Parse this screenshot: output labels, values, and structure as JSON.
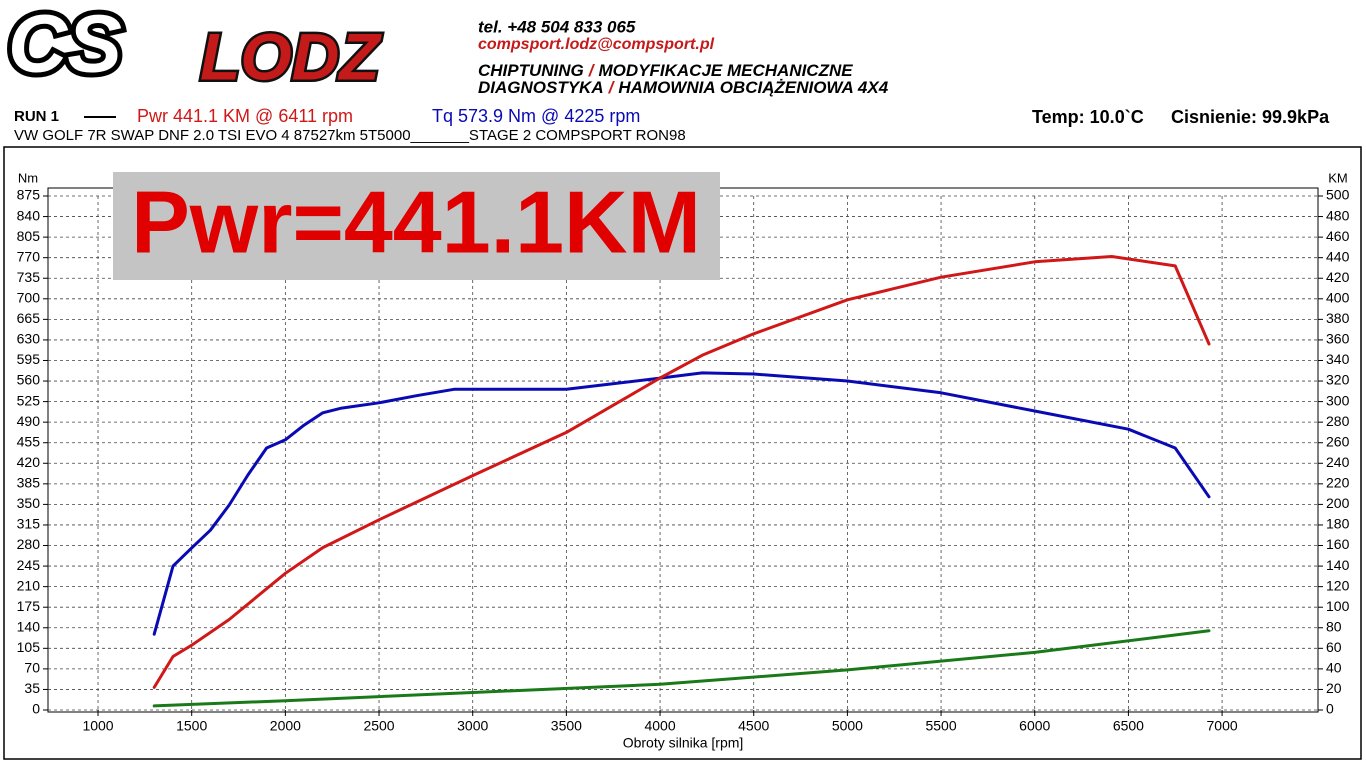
{
  "header": {
    "logo": [
      "CS",
      "LODZ"
    ],
    "phone": "tel. +48 504 833 065",
    "email": "compsport.lodz@compsport.pl",
    "services": [
      [
        "CHIPTUNING",
        "/",
        "MODYFIKACJE MECHANICZNE"
      ],
      [
        "DIAGNOSTYKA",
        "/",
        "HAMOWNIA OBCIĄŻENIOWA 4X4"
      ]
    ]
  },
  "run": {
    "name": "RUN 1",
    "pwr": "Pwr  441.1 KM @ 6411 rpm",
    "tq": "Tq 573.9 Nm @ 4225 rpm",
    "temp": "Temp: 10.0`C",
    "pressure": "Cisnienie: 99.9kPa",
    "vehicle": "VW GOLF 7R SWAP DNF 2.0 TSI  EVO 4  87527km 5T5000_______STAGE 2 COMPSPORT RON98"
  },
  "chart_data": {
    "type": "line",
    "annotation": "Pwr=441.1KM",
    "y_label": "Nm",
    "y2_label": "KM",
    "x_label": "Obroty silnika [rpm]",
    "xlim": [
      733,
      7512
    ],
    "xticks": [
      1000,
      1500,
      2000,
      2500,
      3000,
      3500,
      4000,
      4500,
      5000,
      5500,
      6000,
      6500,
      7000
    ],
    "ylim": [
      0,
      875
    ],
    "yticks": [
      0,
      35,
      70,
      105,
      140,
      175,
      210,
      245,
      280,
      315,
      350,
      385,
      420,
      455,
      490,
      525,
      560,
      595,
      630,
      665,
      700,
      735,
      770,
      805,
      840,
      875
    ],
    "y2lim": [
      0,
      500
    ],
    "y2ticks": [
      0,
      20,
      40,
      60,
      80,
      100,
      120,
      140,
      160,
      180,
      200,
      220,
      240,
      260,
      280,
      300,
      320,
      340,
      360,
      380,
      400,
      420,
      440,
      460,
      480,
      500
    ],
    "grid": true,
    "series": [
      {
        "color": "#0a0ab4",
        "x": [
          1300,
          1350,
          1400,
          1500,
          1600,
          1700,
          1800,
          1900,
          2000,
          2100,
          2200,
          2300,
          2500,
          2700,
          2900,
          3000,
          3500,
          4000,
          4225,
          4500,
          5000,
          5500,
          6000,
          6500,
          6750,
          6930
        ],
        "values": [
          129,
          187,
          245,
          276,
          306,
          349,
          400,
          446,
          460,
          485,
          506,
          514,
          523,
          535,
          546,
          546,
          546,
          565,
          573.9,
          572,
          560,
          540,
          509,
          478,
          446,
          363
        ]
      },
      {
        "color": "#d01818",
        "axis": "y2",
        "x": [
          1300,
          1400,
          1500,
          1700,
          2000,
          2200,
          2500,
          3000,
          3500,
          4000,
          4225,
          4500,
          5000,
          5500,
          6000,
          6411,
          6750,
          6930
        ],
        "values": [
          22,
          52,
          63,
          88,
          133,
          158,
          185,
          228,
          270,
          323,
          345,
          366,
          399,
          421,
          436,
          441.1,
          432,
          356
        ]
      },
      {
        "color": "#1a7a1a",
        "axis": "y2",
        "x": [
          1300,
          2000,
          3000,
          4000,
          5000,
          6000,
          6930
        ],
        "values": [
          4,
          9,
          17,
          25,
          39,
          56,
          77
        ]
      }
    ]
  }
}
